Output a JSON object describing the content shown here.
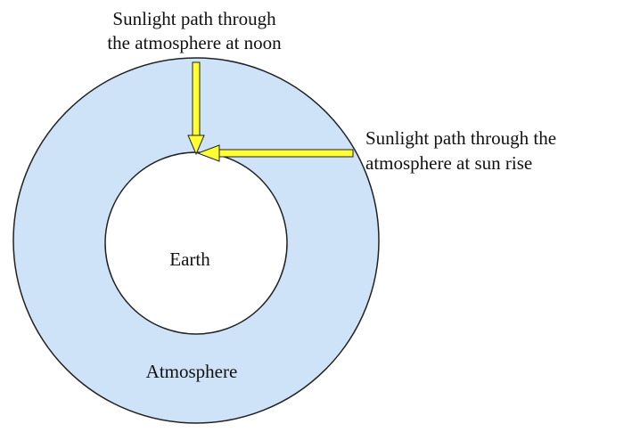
{
  "labels": {
    "noon": [
      "Sunlight path through",
      "the atmosphere at noon"
    ],
    "sunrise": [
      "Sunlight path through the",
      "atmosphere at sun rise"
    ],
    "earth": "Earth",
    "atmosphere": "Atmosphere"
  }
}
